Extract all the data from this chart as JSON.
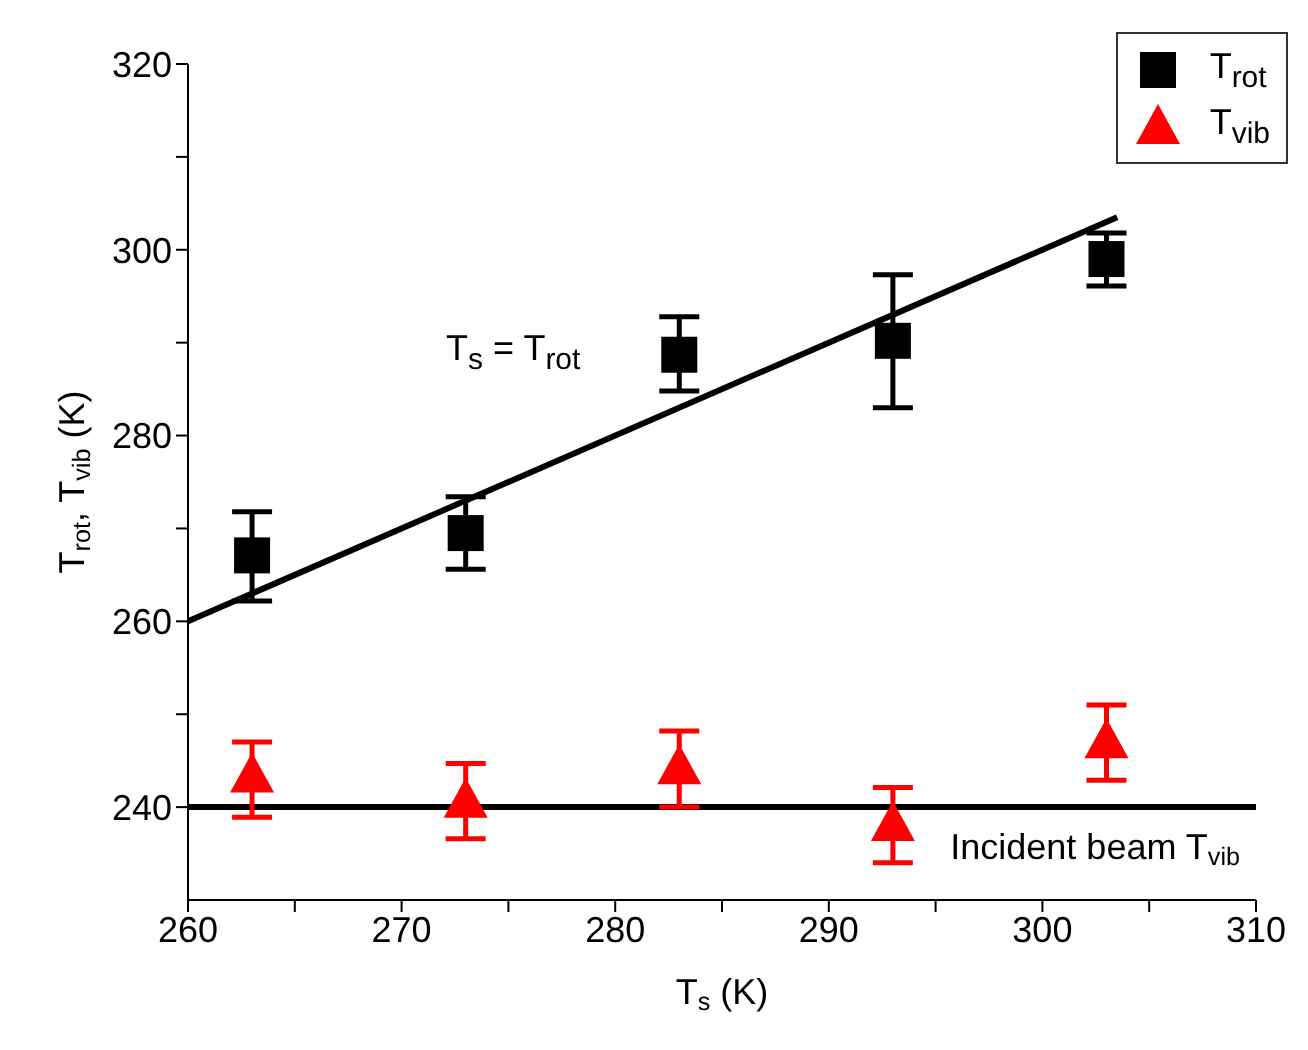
{
  "chart_data": {
    "type": "scatter",
    "xlabel": "T$_{s}$ (K)",
    "ylabel": "T$_{rot}$, T$_{vib}$ (K)",
    "xlim": [
      260,
      310
    ],
    "xticks": [
      260,
      {
        "value": 265,
        "label": null
      },
      270,
      {
        "value": 275,
        "label": null
      },
      280,
      {
        "value": 285,
        "label": null
      },
      290,
      {
        "value": 295,
        "label": null
      },
      300,
      {
        "value": 305,
        "label": null
      },
      310
    ],
    "ylim": [
      230,
      320
    ],
    "yticks": [
      240,
      {
        "value": 250,
        "label": null
      },
      260,
      {
        "value": 270,
        "label": null
      },
      280,
      {
        "value": 290,
        "label": null
      },
      300,
      {
        "value": 310,
        "label": null
      },
      320
    ],
    "legend": "top right",
    "series": [
      {
        "name": "T$_{rot}$",
        "marker": "square",
        "color": "#000000",
        "x": [
          263,
          273,
          283,
          293,
          303
        ],
        "values": [
          267.1,
          269.5,
          288.7,
          290.2,
          299.0
        ],
        "errors": [
          [
            262.2,
            271.8
          ],
          [
            265.6,
            273.4
          ],
          [
            284.8,
            292.8
          ],
          [
            283.0,
            297.3
          ],
          [
            296.1,
            301.8
          ]
        ]
      },
      {
        "name": "T$_{vib}$",
        "marker": "triangle",
        "color": "#ff0000",
        "x": [
          263,
          273,
          283,
          293,
          303
        ],
        "values": [
          243.5,
          240.8,
          244.4,
          238.3,
          247.2
        ],
        "errors": [
          [
            238.9,
            247.0
          ],
          [
            236.6,
            244.7
          ],
          [
            240.0,
            248.2
          ],
          [
            234.0,
            242.1
          ],
          [
            242.9,
            251.0
          ]
        ]
      },
      {
        "type": "line",
        "marker": "none",
        "line_style": "solid",
        "color": "#000000",
        "x": [
          260,
          303.5
        ],
        "values": [
          260,
          303.5
        ]
      }
    ],
    "ref_lines": [
      {
        "axis": "y",
        "value": 240,
        "label": "Incident beam T$_{vib}$",
        "color": "#000000"
      }
    ],
    "annotations": [
      "T$_{s}$ = T$_{rot}$"
    ]
  }
}
